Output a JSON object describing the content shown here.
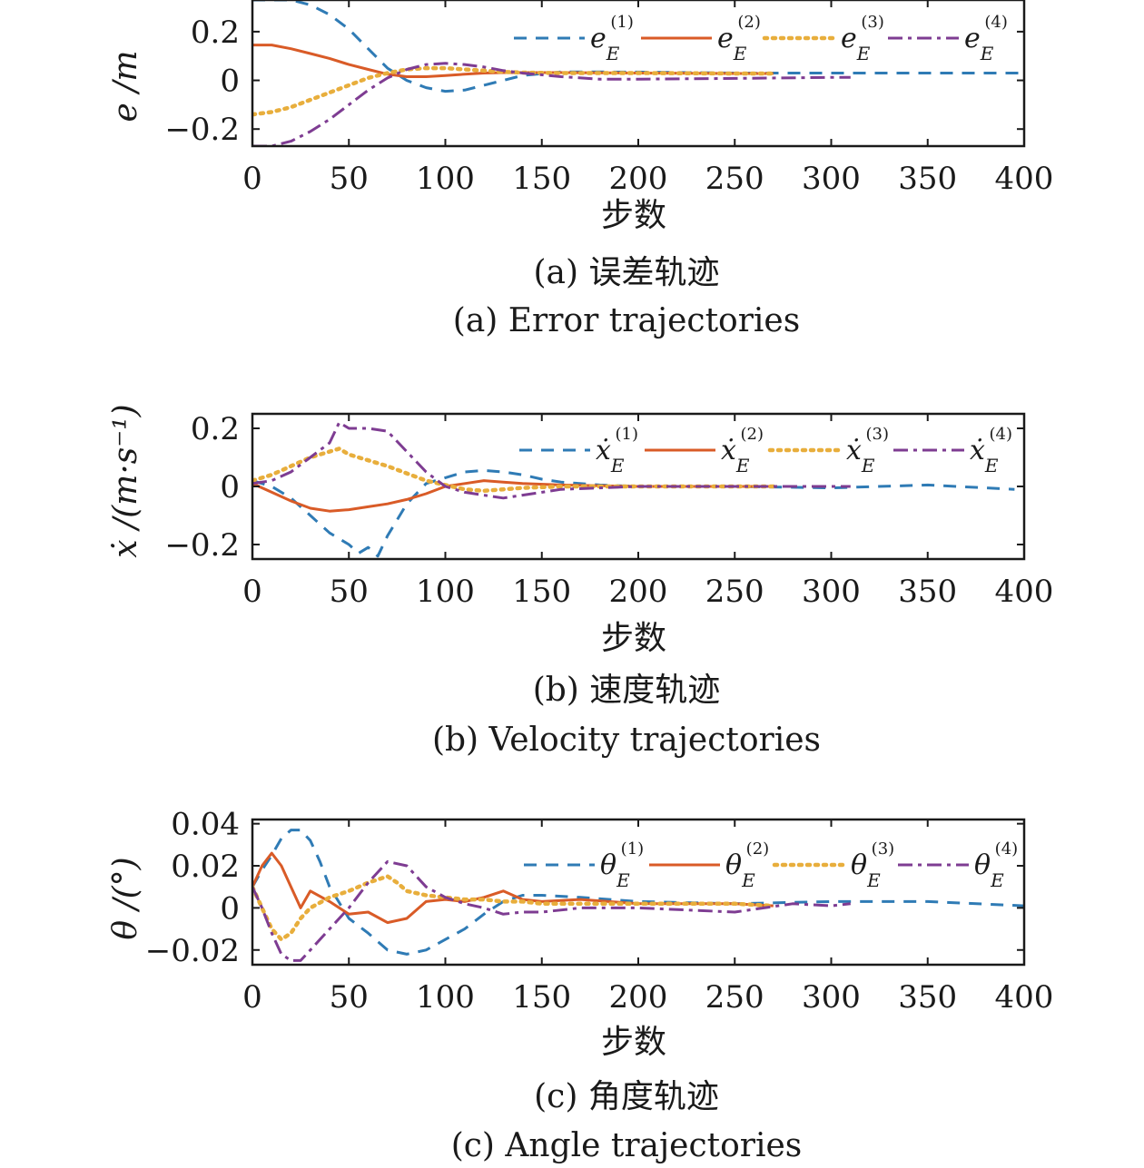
{
  "chart_data": [
    {
      "type": "line",
      "panel": "a",
      "caption_cn": "(a) 误差轨迹",
      "caption_en": "(a) Error trajectories",
      "xlabel": "步数",
      "ylabel": "e /m",
      "xlim": [
        0,
        400
      ],
      "ylim": [
        -0.27,
        0.33
      ],
      "xticks": [
        "0",
        "50",
        "100",
        "150",
        "200",
        "250",
        "300",
        "350",
        "400"
      ],
      "yticks": [
        {
          "v": 0.2,
          "label": "0.2"
        },
        {
          "v": 0,
          "label": "0"
        },
        {
          "v": -0.2,
          "label": "−0.2"
        }
      ],
      "grid": false,
      "legend": "top-right",
      "series": [
        {
          "name": "e_E^(1)",
          "sym": "e",
          "sup": "(1)",
          "color": "#2f7bb5",
          "dash": "14,10",
          "x": [
            0,
            10,
            20,
            30,
            40,
            50,
            60,
            70,
            80,
            90,
            100,
            110,
            120,
            130,
            140,
            160,
            200,
            250,
            300,
            350,
            400
          ],
          "y": [
            0.33,
            0.33,
            0.33,
            0.31,
            0.27,
            0.21,
            0.13,
            0.05,
            0.0,
            -0.03,
            -0.045,
            -0.04,
            -0.02,
            0.0,
            0.02,
            0.035,
            0.034,
            0.03,
            0.03,
            0.03,
            0.03
          ]
        },
        {
          "name": "e_E^(2)",
          "sym": "e",
          "sup": "(2)",
          "color": "#d95b27",
          "dash": "",
          "x": [
            0,
            10,
            20,
            30,
            40,
            50,
            60,
            70,
            80,
            90,
            100,
            110,
            120,
            130,
            140,
            160,
            200,
            250,
            270
          ],
          "y": [
            0.145,
            0.145,
            0.13,
            0.11,
            0.09,
            0.065,
            0.045,
            0.025,
            0.015,
            0.015,
            0.02,
            0.025,
            0.03,
            0.032,
            0.032,
            0.032,
            0.03,
            0.028,
            0.028
          ]
        },
        {
          "name": "e_E^(3)",
          "sym": "e",
          "sup": "(3)",
          "color": "#e8ae3c",
          "dash": "3,6",
          "x": [
            0,
            10,
            20,
            30,
            40,
            50,
            60,
            70,
            80,
            90,
            100,
            110,
            120,
            130,
            140,
            160,
            200,
            250,
            270
          ],
          "y": [
            -0.14,
            -0.13,
            -0.11,
            -0.08,
            -0.05,
            -0.02,
            0.01,
            0.03,
            0.045,
            0.05,
            0.05,
            0.045,
            0.04,
            0.035,
            0.032,
            0.03,
            0.03,
            0.028,
            0.028
          ]
        },
        {
          "name": "e_E^(4)",
          "sym": "e",
          "sup": "(4)",
          "color": "#7e3c92",
          "dash": "16,6,4,6",
          "x": [
            0,
            10,
            20,
            30,
            40,
            50,
            60,
            70,
            80,
            90,
            100,
            110,
            120,
            130,
            140,
            160,
            180,
            200,
            250,
            300,
            310
          ],
          "y": [
            -0.27,
            -0.27,
            -0.25,
            -0.21,
            -0.16,
            -0.1,
            -0.04,
            0.01,
            0.045,
            0.065,
            0.07,
            0.065,
            0.055,
            0.04,
            0.03,
            0.015,
            0.005,
            0.005,
            0.008,
            0.012,
            0.012
          ]
        }
      ]
    },
    {
      "type": "line",
      "panel": "b",
      "caption_cn": "(b) 速度轨迹",
      "caption_en": "(b) Velocity trajectories",
      "xlabel": "步数",
      "ylabel": "ẋ /(m·s⁻¹)",
      "xlim": [
        0,
        400
      ],
      "ylim": [
        -0.25,
        0.25
      ],
      "xticks": [
        "0",
        "50",
        "100",
        "150",
        "200",
        "250",
        "300",
        "350",
        "400"
      ],
      "yticks": [
        {
          "v": 0.2,
          "label": "0.2"
        },
        {
          "v": 0,
          "label": "0"
        },
        {
          "v": -0.2,
          "label": "−0.2"
        }
      ],
      "grid": false,
      "legend": "top-right",
      "series": [
        {
          "name": "ẋ_E^(1)",
          "sym": "ẋ",
          "sup": "(1)",
          "color": "#2f7bb5",
          "dash": "14,10",
          "x": [
            0,
            10,
            20,
            30,
            40,
            50,
            55,
            60,
            65,
            70,
            80,
            90,
            100,
            110,
            120,
            130,
            140,
            150,
            160,
            180,
            200,
            250,
            300,
            350,
            395
          ],
          "y": [
            0.02,
            0.0,
            -0.04,
            -0.1,
            -0.16,
            -0.2,
            -0.23,
            -0.21,
            -0.24,
            -0.17,
            -0.06,
            0.01,
            0.03,
            0.05,
            0.055,
            0.05,
            0.04,
            0.025,
            0.015,
            0.005,
            0.0,
            0.0,
            -0.005,
            0.005,
            -0.01
          ]
        },
        {
          "name": "ẋ_E^(2)",
          "sym": "ẋ",
          "sup": "(2)",
          "color": "#d95b27",
          "dash": "",
          "x": [
            0,
            10,
            20,
            30,
            40,
            50,
            60,
            70,
            80,
            90,
            100,
            110,
            120,
            130,
            140,
            160,
            200,
            250,
            270
          ],
          "y": [
            0.01,
            -0.02,
            -0.05,
            -0.075,
            -0.085,
            -0.08,
            -0.07,
            -0.06,
            -0.045,
            -0.025,
            0.0,
            0.01,
            0.02,
            0.015,
            0.01,
            0.005,
            0.0,
            0.0,
            0.0
          ]
        },
        {
          "name": "ẋ_E^(3)",
          "sym": "ẋ",
          "sup": "(3)",
          "color": "#e8ae3c",
          "dash": "3,6",
          "x": [
            0,
            10,
            20,
            30,
            40,
            45,
            50,
            60,
            70,
            80,
            90,
            100,
            110,
            120,
            130,
            140,
            160,
            200,
            250,
            270
          ],
          "y": [
            0.02,
            0.04,
            0.07,
            0.1,
            0.12,
            0.13,
            0.11,
            0.09,
            0.07,
            0.045,
            0.02,
            0.005,
            -0.01,
            -0.015,
            -0.01,
            -0.005,
            0.0,
            0.0,
            0.0,
            0.0
          ]
        },
        {
          "name": "ẋ_E^(4)",
          "sym": "ẋ",
          "sup": "(4)",
          "color": "#7e3c92",
          "dash": "16,6,4,6",
          "x": [
            0,
            10,
            20,
            30,
            40,
            45,
            50,
            60,
            70,
            80,
            90,
            100,
            110,
            120,
            130,
            140,
            160,
            200,
            250,
            300,
            310
          ],
          "y": [
            0.01,
            0.02,
            0.05,
            0.1,
            0.15,
            0.22,
            0.2,
            0.2,
            0.19,
            0.12,
            0.05,
            0.0,
            -0.02,
            -0.03,
            -0.04,
            -0.03,
            -0.01,
            0.0,
            0.0,
            0.0,
            0.0
          ]
        }
      ]
    },
    {
      "type": "line",
      "panel": "c",
      "caption_cn": "(c) 角度轨迹",
      "caption_en": "(c) Angle trajectories",
      "xlabel": "步数",
      "ylabel": "θ /(°)",
      "xlim": [
        0,
        400
      ],
      "ylim": [
        -0.027,
        0.042
      ],
      "xticks": [
        "0",
        "50",
        "100",
        "150",
        "200",
        "250",
        "300",
        "350",
        "400"
      ],
      "yticks": [
        {
          "v": 0.04,
          "label": "0.04"
        },
        {
          "v": 0.02,
          "label": "0.02"
        },
        {
          "v": 0,
          "label": "0"
        },
        {
          "v": -0.02,
          "label": "−0.02"
        }
      ],
      "grid": false,
      "legend": "top-right",
      "series": [
        {
          "name": "θ_E^(1)",
          "sym": "θ",
          "sup": "(1)",
          "color": "#2f7bb5",
          "dash": "14,10",
          "x": [
            0,
            5,
            10,
            15,
            20,
            25,
            30,
            35,
            40,
            50,
            60,
            70,
            80,
            90,
            100,
            110,
            120,
            130,
            140,
            150,
            170,
            200,
            250,
            300,
            350,
            400
          ],
          "y": [
            0.01,
            0.018,
            0.025,
            0.033,
            0.037,
            0.037,
            0.032,
            0.022,
            0.01,
            -0.005,
            -0.012,
            -0.02,
            -0.022,
            -0.02,
            -0.015,
            -0.01,
            -0.003,
            0.003,
            0.006,
            0.006,
            0.005,
            0.003,
            0.002,
            0.003,
            0.003,
            0.001
          ]
        },
        {
          "name": "θ_E^(2)",
          "sym": "θ",
          "sup": "(2)",
          "color": "#d95b27",
          "dash": "",
          "x": [
            0,
            5,
            10,
            15,
            20,
            25,
            30,
            40,
            50,
            60,
            70,
            80,
            90,
            100,
            110,
            120,
            130,
            140,
            150,
            170,
            200,
            250,
            270
          ],
          "y": [
            0.01,
            0.02,
            0.026,
            0.02,
            0.01,
            0.0,
            0.008,
            0.003,
            -0.003,
            -0.002,
            -0.007,
            -0.005,
            0.003,
            0.004,
            0.003,
            0.005,
            0.008,
            0.004,
            0.003,
            0.004,
            0.002,
            0.002,
            0.001
          ]
        },
        {
          "name": "θ_E^(3)",
          "sym": "θ",
          "sup": "(3)",
          "color": "#e8ae3c",
          "dash": "3,6",
          "x": [
            0,
            5,
            10,
            15,
            20,
            25,
            30,
            40,
            50,
            60,
            70,
            75,
            80,
            90,
            100,
            110,
            120,
            130,
            140,
            150,
            170,
            200,
            250,
            270
          ],
          "y": [
            0.01,
            0.0,
            -0.01,
            -0.015,
            -0.012,
            -0.005,
            0.0,
            0.005,
            0.008,
            0.012,
            0.015,
            0.012,
            0.008,
            0.006,
            0.005,
            0.004,
            0.004,
            0.003,
            0.003,
            0.002,
            0.002,
            0.002,
            0.002,
            0.001
          ]
        },
        {
          "name": "θ_E^(4)",
          "sym": "θ",
          "sup": "(4)",
          "color": "#7e3c92",
          "dash": "16,6,4,6",
          "x": [
            0,
            5,
            10,
            15,
            20,
            25,
            30,
            40,
            50,
            60,
            70,
            80,
            90,
            100,
            110,
            120,
            130,
            140,
            150,
            170,
            200,
            250,
            280,
            300,
            310
          ],
          "y": [
            0.01,
            0.0,
            -0.012,
            -0.022,
            -0.025,
            -0.025,
            -0.02,
            -0.01,
            0.0,
            0.012,
            0.022,
            0.02,
            0.01,
            0.005,
            0.002,
            0.0,
            -0.003,
            -0.002,
            -0.002,
            0.0,
            0.0,
            -0.002,
            0.002,
            0.001,
            0.002
          ]
        }
      ]
    }
  ]
}
